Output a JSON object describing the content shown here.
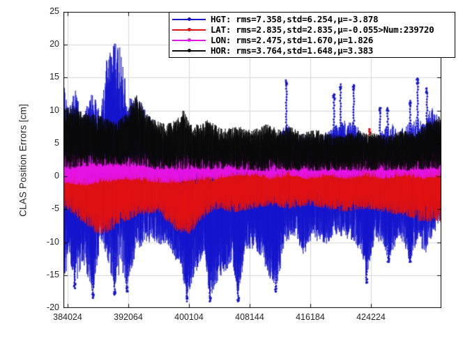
{
  "figure": {
    "background": "#ffffff"
  },
  "chart_data": {
    "type": "line",
    "title": "",
    "xlabel": "",
    "ylabel": "CLAS Position Errors [cm]",
    "xlim": [
      383470,
      433560
    ],
    "ylim": [
      -20,
      25
    ],
    "x_ticks": [
      384024,
      392064,
      400104,
      408144,
      416184,
      424224
    ],
    "y_ticks": [
      25,
      20,
      15,
      10,
      5,
      0,
      -5,
      -10,
      -15,
      -20
    ],
    "grid": true,
    "grid_color": "#d6d6d6",
    "axis_color": "#000000",
    "tick_label_color": "#262626",
    "num_points": 239720,
    "legend": {
      "position": "top-right",
      "background": "#ffffff",
      "border_color": "#000000",
      "entries": [
        {
          "name": "HGT",
          "color": "#1515cd",
          "label": "HGT: rms=7.358,std=6.254,μ=-3.878",
          "rms": 7.358,
          "std": 6.254,
          "mu": -3.878
        },
        {
          "name": "LAT",
          "color": "#e01212",
          "label": "LAT: rms=2.835,std=2.835,μ=-0.055>Num:239720",
          "rms": 2.835,
          "std": 2.835,
          "mu": -0.055,
          "num": 239720
        },
        {
          "name": "LON",
          "color": "#e414e4",
          "label": "LON: rms=2.475,std=1.670,μ=1.826",
          "rms": 2.475,
          "std": 1.67,
          "mu": 1.826
        },
        {
          "name": "HOR",
          "color": "#0a0a0a",
          "label": "HOR: rms=3.764,std=1.648,μ=3.383",
          "rms": 3.764,
          "std": 1.648,
          "mu": 3.383
        }
      ]
    },
    "envelope_format": "[x_fraction_of_xrange, lower_cm, upper_cm]",
    "series": [
      {
        "name": "HGT",
        "color": "#1515cd",
        "envelope": [
          [
            0.0,
            -19,
            16
          ],
          [
            0.012,
            -12,
            10.5
          ],
          [
            0.03,
            -17,
            13.5
          ],
          [
            0.05,
            -13,
            9
          ],
          [
            0.078,
            -18,
            13
          ],
          [
            0.098,
            -10,
            9.5
          ],
          [
            0.115,
            -12,
            18
          ],
          [
            0.135,
            -18,
            20.5
          ],
          [
            0.152,
            -14,
            19.5
          ],
          [
            0.168,
            -17,
            12.5
          ],
          [
            0.19,
            -12,
            12
          ],
          [
            0.215,
            -10,
            11
          ],
          [
            0.245,
            -10,
            7
          ],
          [
            0.275,
            -11,
            6
          ],
          [
            0.31,
            -14,
            5
          ],
          [
            0.327,
            -18.5,
            4.5
          ],
          [
            0.348,
            -15,
            6
          ],
          [
            0.368,
            -12,
            5
          ],
          [
            0.388,
            -18.5,
            5
          ],
          [
            0.408,
            -16,
            6.5
          ],
          [
            0.428,
            -14.5,
            5
          ],
          [
            0.448,
            -13,
            5.5
          ],
          [
            0.462,
            -18.5,
            5
          ],
          [
            0.482,
            -11,
            5.5
          ],
          [
            0.502,
            -11,
            4.5
          ],
          [
            0.522,
            -12,
            5
          ],
          [
            0.545,
            -15.5,
            5
          ],
          [
            0.562,
            -17,
            6
          ],
          [
            0.59,
            -10,
            8.5
          ],
          [
            0.612,
            -9,
            6
          ],
          [
            0.636,
            -12,
            6.5
          ],
          [
            0.66,
            -9,
            6
          ],
          [
            0.686,
            -11,
            7
          ],
          [
            0.716,
            -9,
            7.5
          ],
          [
            0.733,
            -9,
            8.5
          ],
          [
            0.768,
            -10,
            8.5
          ],
          [
            0.79,
            -12,
            6.5
          ],
          [
            0.802,
            -15.5,
            6
          ],
          [
            0.822,
            -10,
            6
          ],
          [
            0.845,
            -10,
            7
          ],
          [
            0.86,
            -13,
            8.5
          ],
          [
            0.89,
            -9,
            7
          ],
          [
            0.917,
            -13,
            8.5
          ],
          [
            0.937,
            -10,
            9
          ],
          [
            0.958,
            -12,
            9
          ],
          [
            0.976,
            -9,
            11
          ],
          [
            1.0,
            -7,
            8
          ]
        ],
        "spikes": [
          [
            0.59,
            14.6
          ],
          [
            0.716,
            12.5
          ],
          [
            0.733,
            14.0
          ],
          [
            0.768,
            13.9
          ],
          [
            0.838,
            10.4
          ],
          [
            0.858,
            10.4
          ],
          [
            0.917,
            11.5
          ],
          [
            0.937,
            14.9
          ],
          [
            0.962,
            13.4
          ],
          [
            0.03,
            -17
          ],
          [
            0.078,
            -18.5
          ],
          [
            0.135,
            -18
          ],
          [
            0.168,
            -17.5
          ],
          [
            0.327,
            -19
          ],
          [
            0.388,
            -19
          ],
          [
            0.462,
            -19
          ],
          [
            0.562,
            -17.5
          ],
          [
            0.802,
            -16.2
          ],
          [
            0.86,
            -13
          ],
          [
            0.917,
            -13
          ]
        ]
      },
      {
        "name": "LAT",
        "color": "#e01212",
        "envelope": [
          [
            0.0,
            -5,
            3.2
          ],
          [
            0.03,
            -6,
            2.5
          ],
          [
            0.06,
            -7.5,
            2
          ],
          [
            0.09,
            -9,
            2
          ],
          [
            0.12,
            -8.5,
            1.5
          ],
          [
            0.16,
            -7,
            1.5
          ],
          [
            0.2,
            -6,
            1.2
          ],
          [
            0.25,
            -5.5,
            1
          ],
          [
            0.3,
            -8.5,
            0.8
          ],
          [
            0.33,
            -9.3,
            0.6
          ],
          [
            0.36,
            -7,
            0.6
          ],
          [
            0.4,
            -5,
            1
          ],
          [
            0.45,
            -5.5,
            1.2
          ],
          [
            0.5,
            -5,
            1.5
          ],
          [
            0.55,
            -4.5,
            1.2
          ],
          [
            0.6,
            -5,
            2
          ],
          [
            0.65,
            -4.5,
            2.6
          ],
          [
            0.7,
            -5,
            1.6
          ],
          [
            0.75,
            -5.5,
            1.2
          ],
          [
            0.8,
            -5,
            1.6
          ],
          [
            0.85,
            -5.5,
            1.2
          ],
          [
            0.9,
            -6,
            2.2
          ],
          [
            0.95,
            -7,
            3.2
          ],
          [
            1.0,
            -7,
            3.6
          ]
        ],
        "spikes": [
          [
            0.81,
            7.2
          ]
        ]
      },
      {
        "name": "LON",
        "color": "#e414e4",
        "envelope": [
          [
            0.0,
            -1,
            4
          ],
          [
            0.05,
            -1.5,
            3.5
          ],
          [
            0.1,
            -1,
            3.5
          ],
          [
            0.15,
            -0.6,
            3
          ],
          [
            0.2,
            -0.6,
            3.6
          ],
          [
            0.25,
            -1,
            3
          ],
          [
            0.3,
            -1,
            3.1
          ],
          [
            0.35,
            -0.6,
            3.5
          ],
          [
            0.4,
            -0.5,
            4
          ],
          [
            0.45,
            0,
            4
          ],
          [
            0.5,
            0,
            4.4
          ],
          [
            0.55,
            -0.5,
            4
          ],
          [
            0.6,
            0,
            4.4
          ],
          [
            0.65,
            -0.5,
            3.6
          ],
          [
            0.7,
            0,
            4
          ],
          [
            0.75,
            -0.5,
            3.5
          ],
          [
            0.8,
            0,
            4
          ],
          [
            0.85,
            -0.5,
            3.6
          ],
          [
            0.9,
            0,
            4.4
          ],
          [
            0.95,
            -0.5,
            4
          ],
          [
            1.0,
            0,
            4.5
          ]
        ],
        "spikes": []
      },
      {
        "name": "HOR",
        "color": "#0a0a0a",
        "envelope": [
          [
            0.0,
            1,
            10.2
          ],
          [
            0.02,
            1,
            11
          ],
          [
            0.05,
            1.5,
            10
          ],
          [
            0.08,
            1.5,
            9.5
          ],
          [
            0.11,
            1.5,
            9
          ],
          [
            0.14,
            1.5,
            8.2
          ],
          [
            0.17,
            1.5,
            10
          ],
          [
            0.192,
            1.5,
            12.6
          ],
          [
            0.215,
            1.5,
            10
          ],
          [
            0.24,
            1,
            8.6
          ],
          [
            0.27,
            1,
            8
          ],
          [
            0.3,
            1,
            8.6
          ],
          [
            0.317,
            1,
            10.4
          ],
          [
            0.34,
            1,
            7.6
          ],
          [
            0.38,
            1,
            8.6
          ],
          [
            0.42,
            1,
            7.2
          ],
          [
            0.46,
            1,
            7.6
          ],
          [
            0.5,
            0.8,
            7.1
          ],
          [
            0.54,
            0.8,
            8
          ],
          [
            0.57,
            0.8,
            7.1
          ],
          [
            0.6,
            0.8,
            7.6
          ],
          [
            0.63,
            0.8,
            6.6
          ],
          [
            0.67,
            0.8,
            7.1
          ],
          [
            0.7,
            0.8,
            6.6
          ],
          [
            0.74,
            0.8,
            6.2
          ],
          [
            0.78,
            0.8,
            7
          ],
          [
            0.82,
            0.8,
            6.6
          ],
          [
            0.86,
            0.8,
            6.2
          ],
          [
            0.9,
            0.8,
            7.1
          ],
          [
            0.93,
            0.8,
            6.6
          ],
          [
            0.96,
            1,
            8.2
          ],
          [
            1.0,
            1,
            9.4
          ]
        ],
        "spikes": []
      }
    ]
  }
}
